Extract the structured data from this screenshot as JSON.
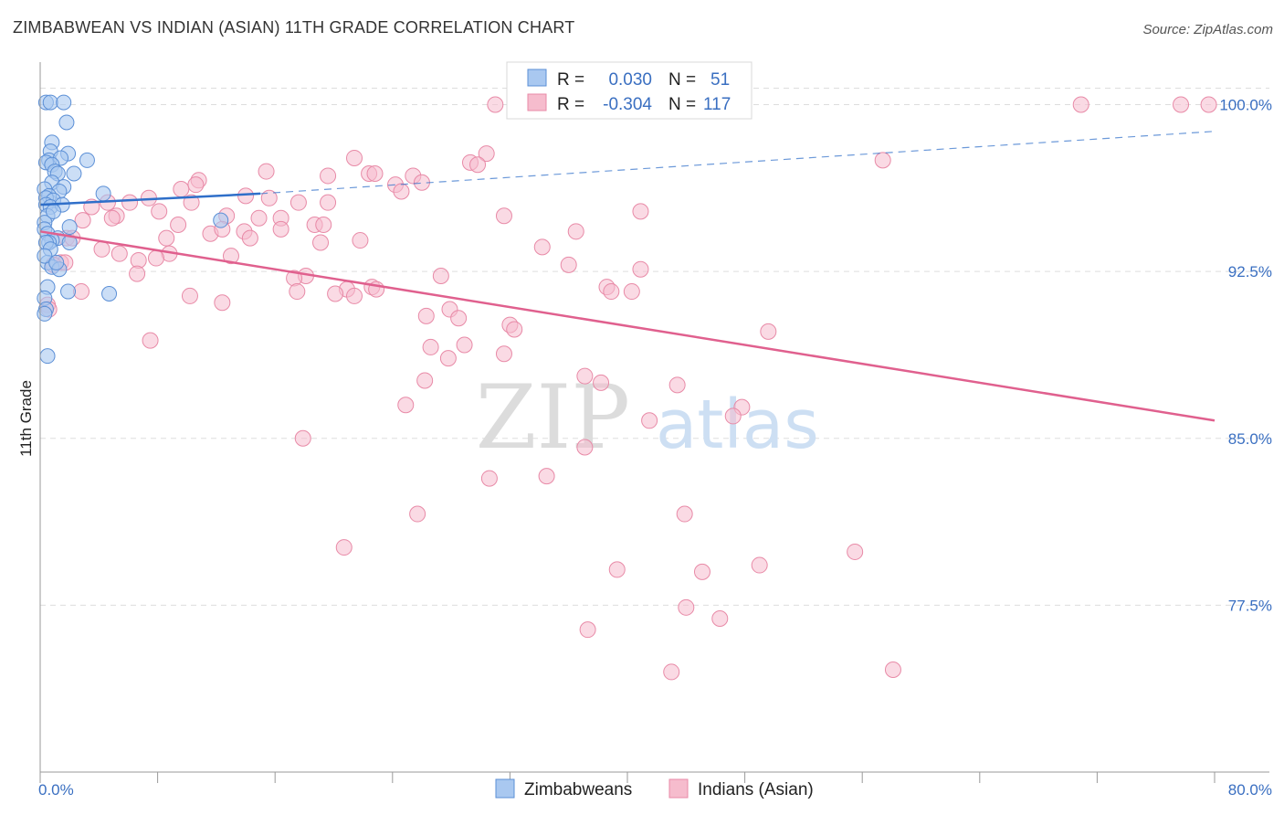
{
  "title": "ZIMBABWEAN VS INDIAN (ASIAN) 11TH GRADE CORRELATION CHART",
  "source": "Source: ZipAtlas.com",
  "watermark": {
    "zip": "ZIP",
    "atlas": "atlas"
  },
  "colors": {
    "blue_fill": "#a9c8f0",
    "blue_stroke": "#5b8fd6",
    "blue_line": "#2f6fc9",
    "pink_fill": "#f6bccd",
    "pink_stroke": "#e88aa7",
    "pink_line": "#e0608e",
    "tick_text": "#3a6fc1",
    "grid": "#dddddd"
  },
  "legend_top": {
    "rows": [
      {
        "r_label": "R =",
        "r_value": "0.030",
        "n_label": "N =",
        "n_value": "51"
      },
      {
        "r_label": "R =",
        "r_value": "-0.304",
        "n_label": "N =",
        "n_value": "117"
      }
    ]
  },
  "chart_data": {
    "type": "scatter",
    "title": "ZIMBABWEAN VS INDIAN (ASIAN) 11TH GRADE CORRELATION CHART",
    "xlabel": "",
    "ylabel": "11th Grade",
    "xlim": [
      0.0,
      80.0
    ],
    "ylim": [
      70.0,
      101.5
    ],
    "x_tick_labels": [
      "0.0%",
      "80.0%"
    ],
    "y_ticks": [
      77.5,
      85.0,
      92.5,
      100.0
    ],
    "y_tick_labels": [
      "77.5%",
      "85.0%",
      "92.5%",
      "100.0%"
    ],
    "grid": true,
    "legend_position": "bottom",
    "series": [
      {
        "name": "Zimbabweans",
        "color": "#5b8fd6",
        "R": 0.03,
        "N": 51,
        "trend": {
          "x": [
            0.0,
            15.0
          ],
          "y": [
            95.5,
            96.0
          ],
          "dashed_x": [
            15.0,
            80.0
          ],
          "dashed_y": [
            96.0,
            98.8
          ]
        },
        "points": [
          [
            0.4,
            100.1
          ],
          [
            0.7,
            100.1
          ],
          [
            1.6,
            100.1
          ],
          [
            1.8,
            99.2
          ],
          [
            0.8,
            98.3
          ],
          [
            0.7,
            97.9
          ],
          [
            1.9,
            97.8
          ],
          [
            0.6,
            97.5
          ],
          [
            1.4,
            97.6
          ],
          [
            0.4,
            97.4
          ],
          [
            0.8,
            97.3
          ],
          [
            3.2,
            97.5
          ],
          [
            1.0,
            97.0
          ],
          [
            1.2,
            96.9
          ],
          [
            2.3,
            96.9
          ],
          [
            0.8,
            96.5
          ],
          [
            1.6,
            96.3
          ],
          [
            0.3,
            96.2
          ],
          [
            1.3,
            96.1
          ],
          [
            0.6,
            95.9
          ],
          [
            0.4,
            95.8
          ],
          [
            0.9,
            95.7
          ],
          [
            4.3,
            96.0
          ],
          [
            0.4,
            95.5
          ],
          [
            0.7,
            95.4
          ],
          [
            1.5,
            95.5
          ],
          [
            0.5,
            95.0
          ],
          [
            0.3,
            94.7
          ],
          [
            0.3,
            94.4
          ],
          [
            0.5,
            94.2
          ],
          [
            1.2,
            94.0
          ],
          [
            0.8,
            93.9
          ],
          [
            0.6,
            93.8
          ],
          [
            2.0,
            94.5
          ],
          [
            2.0,
            93.8
          ],
          [
            0.4,
            93.8
          ],
          [
            0.7,
            93.5
          ],
          [
            0.5,
            92.9
          ],
          [
            0.8,
            92.7
          ],
          [
            1.3,
            92.6
          ],
          [
            0.5,
            91.8
          ],
          [
            1.9,
            91.6
          ],
          [
            0.3,
            91.3
          ],
          [
            0.4,
            90.8
          ],
          [
            0.3,
            90.6
          ],
          [
            4.7,
            91.5
          ],
          [
            12.3,
            94.8
          ],
          [
            0.5,
            88.7
          ],
          [
            0.3,
            93.2
          ],
          [
            0.9,
            95.2
          ],
          [
            1.1,
            92.9
          ]
        ]
      },
      {
        "name": "Indians (Asian)",
        "color": "#e88aa7",
        "R": -0.304,
        "N": 117,
        "trend": {
          "x": [
            0.0,
            80.0
          ],
          "y": [
            94.3,
            85.8
          ]
        },
        "points": [
          [
            31.0,
            100.0
          ],
          [
            46.7,
            100.0
          ],
          [
            70.9,
            100.0
          ],
          [
            77.7,
            100.0
          ],
          [
            79.6,
            100.0
          ],
          [
            30.4,
            97.8
          ],
          [
            21.4,
            97.6
          ],
          [
            29.3,
            97.4
          ],
          [
            29.8,
            97.3
          ],
          [
            57.4,
            97.5
          ],
          [
            15.4,
            97.0
          ],
          [
            19.6,
            96.8
          ],
          [
            22.4,
            96.9
          ],
          [
            22.8,
            96.9
          ],
          [
            25.4,
            96.8
          ],
          [
            24.2,
            96.4
          ],
          [
            10.8,
            96.6
          ],
          [
            26.0,
            96.5
          ],
          [
            10.6,
            96.4
          ],
          [
            9.6,
            96.2
          ],
          [
            24.6,
            96.1
          ],
          [
            14.0,
            95.9
          ],
          [
            7.4,
            95.8
          ],
          [
            15.6,
            95.8
          ],
          [
            17.6,
            95.6
          ],
          [
            19.6,
            95.6
          ],
          [
            6.1,
            95.6
          ],
          [
            10.3,
            95.6
          ],
          [
            4.6,
            95.6
          ],
          [
            3.5,
            95.4
          ],
          [
            8.1,
            95.2
          ],
          [
            40.9,
            95.2
          ],
          [
            31.6,
            95.0
          ],
          [
            12.7,
            95.0
          ],
          [
            5.2,
            95.0
          ],
          [
            4.9,
            94.9
          ],
          [
            2.9,
            94.8
          ],
          [
            14.9,
            94.9
          ],
          [
            16.4,
            94.9
          ],
          [
            18.7,
            94.6
          ],
          [
            19.3,
            94.6
          ],
          [
            9.4,
            94.6
          ],
          [
            16.4,
            94.4
          ],
          [
            11.6,
            94.2
          ],
          [
            13.9,
            94.3
          ],
          [
            12.4,
            94.4
          ],
          [
            36.5,
            94.3
          ],
          [
            8.6,
            94.0
          ],
          [
            14.3,
            94.0
          ],
          [
            21.8,
            93.9
          ],
          [
            1.8,
            94.0
          ],
          [
            2.2,
            94.0
          ],
          [
            19.1,
            93.8
          ],
          [
            34.2,
            93.6
          ],
          [
            4.2,
            93.5
          ],
          [
            5.4,
            93.3
          ],
          [
            8.8,
            93.3
          ],
          [
            13.0,
            93.2
          ],
          [
            6.7,
            93.0
          ],
          [
            7.9,
            93.1
          ],
          [
            1.4,
            92.9
          ],
          [
            1.7,
            92.9
          ],
          [
            0.9,
            92.8
          ],
          [
            36.0,
            92.8
          ],
          [
            40.9,
            92.6
          ],
          [
            6.6,
            92.4
          ],
          [
            18.1,
            92.3
          ],
          [
            17.3,
            92.2
          ],
          [
            27.3,
            92.3
          ],
          [
            38.6,
            91.8
          ],
          [
            20.9,
            91.7
          ],
          [
            22.6,
            91.8
          ],
          [
            22.9,
            91.7
          ],
          [
            38.9,
            91.6
          ],
          [
            40.3,
            91.6
          ],
          [
            2.8,
            91.6
          ],
          [
            17.5,
            91.6
          ],
          [
            20.1,
            91.5
          ],
          [
            10.2,
            91.4
          ],
          [
            21.4,
            91.4
          ],
          [
            12.4,
            91.1
          ],
          [
            0.5,
            91.0
          ],
          [
            0.6,
            90.8
          ],
          [
            27.9,
            90.8
          ],
          [
            26.3,
            90.5
          ],
          [
            28.5,
            90.4
          ],
          [
            32.0,
            90.1
          ],
          [
            32.3,
            89.9
          ],
          [
            49.6,
            89.8
          ],
          [
            7.5,
            89.4
          ],
          [
            28.9,
            89.2
          ],
          [
            26.6,
            89.1
          ],
          [
            31.6,
            88.8
          ],
          [
            27.8,
            88.6
          ],
          [
            37.1,
            87.8
          ],
          [
            26.2,
            87.6
          ],
          [
            38.2,
            87.5
          ],
          [
            43.4,
            87.4
          ],
          [
            24.9,
            86.5
          ],
          [
            47.8,
            86.4
          ],
          [
            47.2,
            86.0
          ],
          [
            41.5,
            85.8
          ],
          [
            17.9,
            85.0
          ],
          [
            37.1,
            84.6
          ],
          [
            34.5,
            83.3
          ],
          [
            30.6,
            83.2
          ],
          [
            25.7,
            81.6
          ],
          [
            43.9,
            81.6
          ],
          [
            20.7,
            80.1
          ],
          [
            55.5,
            79.9
          ],
          [
            49.0,
            79.3
          ],
          [
            39.3,
            79.1
          ],
          [
            45.1,
            79.0
          ],
          [
            44.0,
            77.4
          ],
          [
            46.3,
            76.9
          ],
          [
            37.3,
            76.4
          ],
          [
            43.0,
            74.5
          ],
          [
            58.1,
            74.6
          ]
        ]
      }
    ]
  }
}
